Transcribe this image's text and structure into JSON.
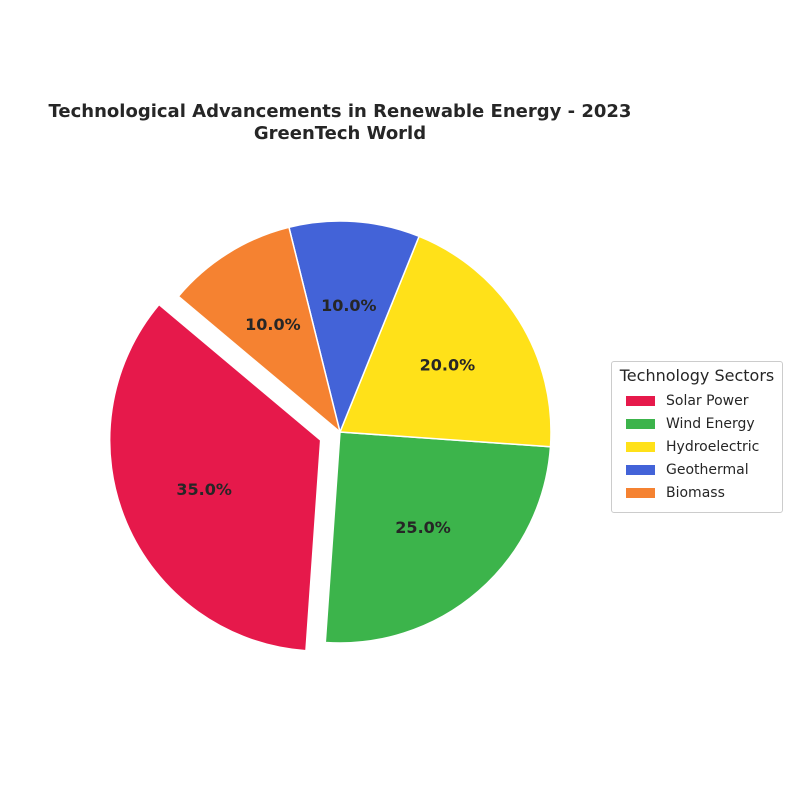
{
  "chart_data": {
    "type": "pie",
    "title": "Technological Advancements in Renewable Energy - 2023",
    "subtitle": "GreenTech World",
    "categories": [
      "Solar Power",
      "Wind Energy",
      "Hydroelectric",
      "Geothermal",
      "Biomass"
    ],
    "values": [
      35.0,
      25.0,
      20.0,
      10.0,
      10.0
    ],
    "value_labels": [
      "35.0%",
      "25.0%",
      "20.0%",
      "10.0%",
      "10.0%"
    ],
    "colors": [
      "#e6194b",
      "#3cb44b",
      "#ffe119",
      "#4363d8",
      "#f58231"
    ],
    "exploded": [
      "Solar Power"
    ],
    "start_angle_deg": 140,
    "direction": "counterclockwise",
    "legend": {
      "title": "Technology Sectors",
      "placement": "right"
    }
  }
}
